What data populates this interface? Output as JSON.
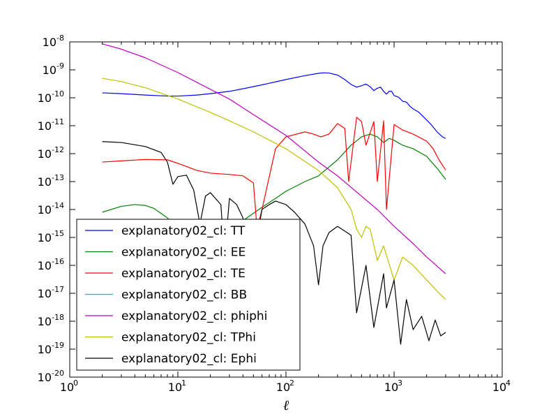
{
  "chart_data": {
    "type": "line",
    "xscale": "log",
    "yscale": "log",
    "xlim": [
      1,
      10000
    ],
    "ylim": [
      1e-20,
      1e-08
    ],
    "xlabel": "ℓ",
    "ylabel": "",
    "title": "",
    "grid": false,
    "legend_position": "lower-left",
    "x_ticks": [
      {
        "base": "10",
        "exp": "0",
        "value": 1
      },
      {
        "base": "10",
        "exp": "1",
        "value": 10
      },
      {
        "base": "10",
        "exp": "2",
        "value": 100
      },
      {
        "base": "10",
        "exp": "3",
        "value": 1000
      },
      {
        "base": "10",
        "exp": "4",
        "value": 10000
      }
    ],
    "y_ticks": [
      {
        "base": "10",
        "exp": "-8",
        "value": 1e-08
      },
      {
        "base": "10",
        "exp": "-9",
        "value": 1e-09
      },
      {
        "base": "10",
        "exp": "-10",
        "value": 1e-10
      },
      {
        "base": "10",
        "exp": "-11",
        "value": 1e-11
      },
      {
        "base": "10",
        "exp": "-12",
        "value": 1e-12
      },
      {
        "base": "10",
        "exp": "-13",
        "value": 1e-13
      },
      {
        "base": "10",
        "exp": "-14",
        "value": 1e-14
      },
      {
        "base": "10",
        "exp": "-15",
        "value": 1e-15
      },
      {
        "base": "10",
        "exp": "-16",
        "value": 1e-16
      },
      {
        "base": "10",
        "exp": "-17",
        "value": 1e-17
      },
      {
        "base": "10",
        "exp": "-18",
        "value": 1e-18
      },
      {
        "base": "10",
        "exp": "-19",
        "value": 1e-19
      },
      {
        "base": "10",
        "exp": "-20",
        "value": 1e-20
      }
    ],
    "series": [
      {
        "name": "explanatory02_cl: TT",
        "color": "#0000ff",
        "x": [
          2,
          3,
          5,
          8,
          10,
          15,
          20,
          30,
          40,
          60,
          80,
          100,
          150,
          200,
          220,
          250,
          300,
          350,
          400,
          450,
          500,
          550,
          600,
          650,
          700,
          750,
          800,
          850,
          900,
          950,
          1000,
          1100,
          1200,
          1300,
          1400,
          1500,
          1700,
          2000,
          2200,
          2500,
          2800,
          3000
        ],
        "y": [
          1.5e-10,
          1.4e-10,
          1.25e-10,
          1.15e-10,
          1.15e-10,
          1.25e-10,
          1.4e-10,
          1.7e-10,
          2.1e-10,
          2.9e-10,
          3.7e-10,
          4.5e-10,
          6.2e-10,
          7.5e-10,
          7.8e-10,
          7.7e-10,
          6.5e-10,
          4.5e-10,
          3e-10,
          2.4e-10,
          2.7e-10,
          3.1e-10,
          2.5e-10,
          1.8e-10,
          2.2e-10,
          2.4e-10,
          1.7e-10,
          1.35e-10,
          1.7e-10,
          1.7e-10,
          1.2e-10,
          1.05e-10,
          7.5e-11,
          7e-11,
          5e-11,
          4e-11,
          3e-11,
          1.6e-11,
          1.1e-11,
          6e-12,
          4e-12,
          3.5e-12
        ]
      },
      {
        "name": "explanatory02_cl: EE",
        "color": "#008000",
        "x": [
          2,
          3,
          4,
          5,
          6,
          8,
          10,
          15,
          20,
          30,
          40,
          60,
          80,
          100,
          150,
          200,
          300,
          400,
          500,
          600,
          700,
          800,
          900,
          1000,
          1200,
          1500,
          2000,
          2500,
          3000
        ],
        "y": [
          8e-15,
          1.3e-14,
          1.5e-14,
          1.4e-14,
          1.1e-14,
          5e-15,
          2.2e-15,
          5e-16,
          3e-16,
          1e-15,
          4e-15,
          1.2e-14,
          2.5e-14,
          4.5e-14,
          1e-13,
          1.6e-13,
          6e-13,
          2e-12,
          4e-12,
          5e-12,
          4e-12,
          2.5e-12,
          3.5e-12,
          3e-12,
          2e-12,
          1.5e-12,
          8e-13,
          3e-13,
          1.2e-13
        ]
      },
      {
        "name": "explanatory02_cl: TE",
        "color": "#ff0000",
        "x": [
          2,
          3,
          5,
          8,
          10,
          15,
          20,
          30,
          40,
          50,
          54,
          60,
          80,
          100,
          150,
          180,
          210,
          250,
          300,
          350,
          380,
          450,
          500,
          550,
          650,
          700,
          800,
          850,
          1000,
          1200,
          1500,
          2000,
          2300,
          2600,
          3000
        ],
        "y": [
          5e-13,
          5.5e-13,
          6.2e-13,
          6e-13,
          4.5e-13,
          2.5e-13,
          2e-13,
          1.8e-13,
          1.6e-13,
          9e-14,
          2e-15,
          1e-14,
          1.5e-12,
          4e-12,
          6e-12,
          5e-12,
          4e-12,
          5e-12,
          1.2e-11,
          8e-12,
          1e-13,
          2e-11,
          1.4e-11,
          2e-12,
          1.4e-11,
          1e-13,
          1.5e-11,
          1e-14,
          1.1e-11,
          7e-12,
          5e-12,
          2.8e-12,
          1.5e-12,
          6e-13,
          2.6e-13
        ]
      },
      {
        "name": "explanatory02_cl: BB",
        "color": "#00bfbf",
        "x": [],
        "y": []
      },
      {
        "name": "explanatory02_cl: phiphi",
        "color": "#bf00bf",
        "x": [
          2,
          3,
          5,
          10,
          20,
          30,
          50,
          100,
          200,
          300,
          500,
          700,
          1000,
          1500,
          2000,
          3000
        ],
        "y": [
          8.5e-09,
          5.5e-09,
          2.7e-09,
          8e-10,
          2e-10,
          9e-11,
          2.5e-11,
          4.5e-12,
          5e-13,
          1.6e-13,
          3e-14,
          1e-14,
          2.5e-15,
          6e-16,
          2e-16,
          5e-17
        ]
      },
      {
        "name": "explanatory02_cl: TPhi",
        "color": "#bfbf00",
        "x": [
          2,
          3,
          5,
          10,
          20,
          30,
          50,
          100,
          200,
          300,
          400,
          450,
          500,
          550,
          600,
          700,
          800,
          1000,
          1200,
          1500,
          2000,
          2500,
          3000
        ],
        "y": [
          5e-10,
          3.8e-10,
          2.3e-10,
          9e-11,
          3e-11,
          1.5e-11,
          6e-12,
          1.5e-12,
          2.5e-13,
          6e-14,
          1e-14,
          2e-15,
          1e-15,
          2.5e-15,
          2e-15,
          1.5e-16,
          5e-16,
          3e-17,
          2e-16,
          1e-16,
          3e-17,
          1.2e-17,
          6e-18
        ]
      },
      {
        "name": "explanatory02_cl: Ephi",
        "color": "#000000",
        "x": [
          2,
          3,
          5,
          7,
          8,
          9,
          10,
          12,
          14,
          16,
          18,
          20,
          25,
          27,
          30,
          35,
          40,
          50,
          55,
          60,
          70,
          80,
          100,
          120,
          150,
          180,
          200,
          220,
          250,
          300,
          400,
          450,
          550,
          650,
          800,
          850,
          1000,
          1150,
          1300,
          1500,
          1800,
          2100,
          2400,
          2700,
          3000
        ],
        "y": [
          2.7e-12,
          2.5e-12,
          1.8e-12,
          1.1e-12,
          5e-13,
          8e-14,
          1.5e-13,
          1.7e-13,
          5e-14,
          3e-15,
          3e-14,
          4e-14,
          1.5e-14,
          2e-16,
          2.5e-14,
          1.5e-14,
          5e-15,
          3e-17,
          1.5e-15,
          1e-14,
          1.5e-14,
          2e-14,
          1.5e-14,
          8e-15,
          3e-15,
          5e-16,
          2e-17,
          5e-16,
          1.5e-15,
          2.5e-15,
          1.2e-15,
          2e-18,
          1e-16,
          6e-19,
          5e-17,
          3e-18,
          3e-17,
          1.5e-19,
          6e-18,
          5e-19,
          1.5e-18,
          2e-19,
          1.1e-18,
          3e-19,
          4e-19
        ]
      }
    ]
  }
}
